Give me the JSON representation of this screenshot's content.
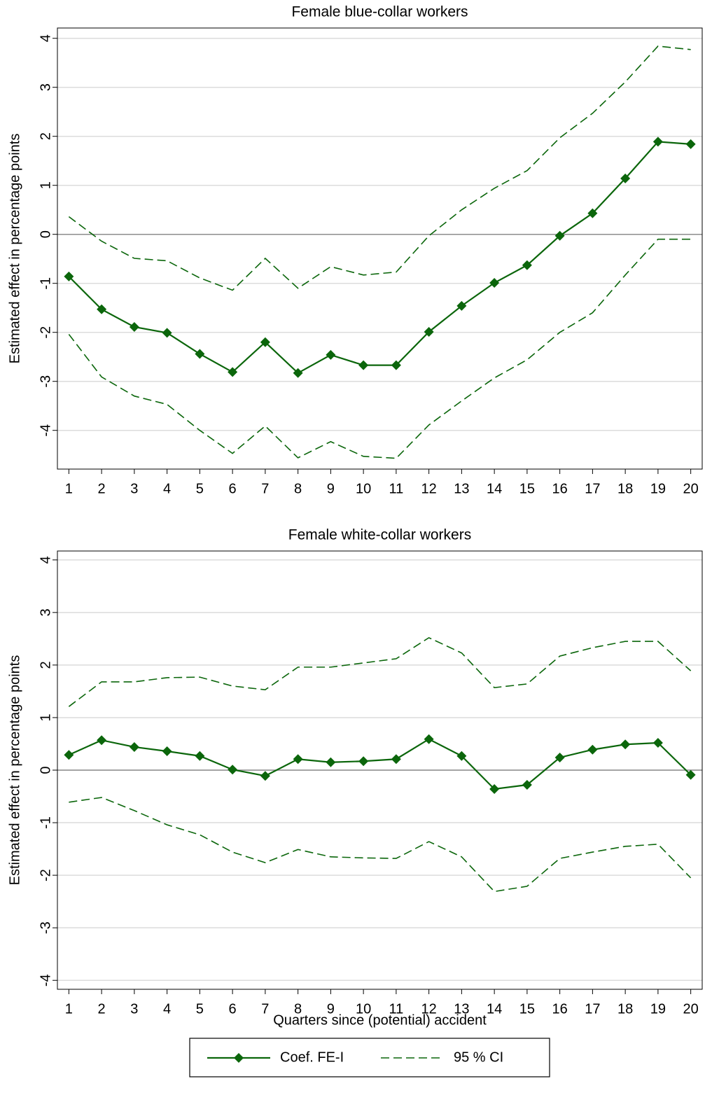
{
  "chart_data": [
    {
      "type": "line",
      "title": "Female blue-collar workers",
      "y_label": "Estimated effect in percentage points",
      "x": [
        1,
        2,
        3,
        4,
        5,
        6,
        7,
        8,
        9,
        10,
        11,
        12,
        13,
        14,
        15,
        16,
        17,
        18,
        19,
        20
      ],
      "xlim": [
        0.65,
        20.35
      ],
      "xticks": [
        1,
        2,
        3,
        4,
        5,
        6,
        7,
        8,
        9,
        10,
        11,
        12,
        13,
        14,
        15,
        16,
        17,
        18,
        19,
        20
      ],
      "ylim": [
        -4.79,
        4.21
      ],
      "yticks": [
        -4,
        -3,
        -2,
        -1,
        0,
        1,
        2,
        3,
        4
      ],
      "grid": true,
      "zero_line": true,
      "series": [
        {
          "color": "#0b660b",
          "style": "solid",
          "markers": true,
          "values": [
            -0.86,
            -1.53,
            -1.89,
            -2.01,
            -2.44,
            -2.81,
            -2.2,
            -2.83,
            -2.46,
            -2.67,
            -2.67,
            -1.99,
            -1.46,
            -0.99,
            -0.63,
            -0.03,
            0.43,
            1.14,
            1.89,
            1.84
          ]
        },
        {
          "color": "#0b660b",
          "style": "dashed",
          "markers": false,
          "values": [
            0.36,
            -0.14,
            -0.49,
            -0.54,
            -0.89,
            -1.14,
            -0.49,
            -1.1,
            -0.66,
            -0.83,
            -0.77,
            -0.03,
            0.5,
            0.94,
            1.3,
            1.97,
            2.47,
            3.11,
            3.84,
            3.77
          ]
        },
        {
          "color": "#0b660b",
          "style": "dashed",
          "markers": false,
          "values": [
            -2.04,
            -2.91,
            -3.3,
            -3.47,
            -4.0,
            -4.47,
            -3.91,
            -4.56,
            -4.23,
            -4.53,
            -4.57,
            -3.89,
            -3.4,
            -2.93,
            -2.56,
            -2.0,
            -1.6,
            -0.83,
            -0.1,
            -0.1
          ]
        }
      ]
    },
    {
      "type": "line",
      "title": "Female white-collar workers",
      "y_label": "Estimated effect in percentage points",
      "x_label": "Quarters since (potential) accident",
      "x": [
        1,
        2,
        3,
        4,
        5,
        6,
        7,
        8,
        9,
        10,
        11,
        12,
        13,
        14,
        15,
        16,
        17,
        18,
        19,
        20
      ],
      "xlim": [
        0.65,
        20.35
      ],
      "xticks": [
        1,
        2,
        3,
        4,
        5,
        6,
        7,
        8,
        9,
        10,
        11,
        12,
        13,
        14,
        15,
        16,
        17,
        18,
        19,
        20
      ],
      "ylim": [
        -4.17,
        4.17
      ],
      "yticks": [
        -4,
        -3,
        -2,
        -1,
        0,
        1,
        2,
        3,
        4
      ],
      "grid": true,
      "zero_line": true,
      "series": [
        {
          "color": "#0b660b",
          "style": "solid",
          "markers": true,
          "values": [
            0.29,
            0.57,
            0.44,
            0.36,
            0.27,
            0.01,
            -0.11,
            0.21,
            0.15,
            0.17,
            0.21,
            0.59,
            0.27,
            -0.36,
            -0.28,
            0.24,
            0.39,
            0.49,
            0.52,
            -0.09
          ]
        },
        {
          "color": "#0b660b",
          "style": "dashed",
          "markers": false,
          "values": [
            1.21,
            1.68,
            1.68,
            1.76,
            1.77,
            1.6,
            1.53,
            1.96,
            1.96,
            2.04,
            2.12,
            2.52,
            2.23,
            1.57,
            1.64,
            2.17,
            2.33,
            2.45,
            2.45,
            1.89
          ]
        },
        {
          "color": "#0b660b",
          "style": "dashed",
          "markers": false,
          "values": [
            -0.61,
            -0.52,
            -0.77,
            -1.04,
            -1.23,
            -1.56,
            -1.76,
            -1.51,
            -1.65,
            -1.67,
            -1.68,
            -1.36,
            -1.65,
            -2.31,
            -2.21,
            -1.68,
            -1.56,
            -1.45,
            -1.41,
            -2.05
          ]
        }
      ]
    }
  ],
  "legend": {
    "items": [
      {
        "label": "Coef. FE-I",
        "color": "#0b660b",
        "style": "solid",
        "markers": true
      },
      {
        "label": "95 % CI",
        "color": "#0b660b",
        "style": "dashed",
        "markers": false
      }
    ]
  }
}
